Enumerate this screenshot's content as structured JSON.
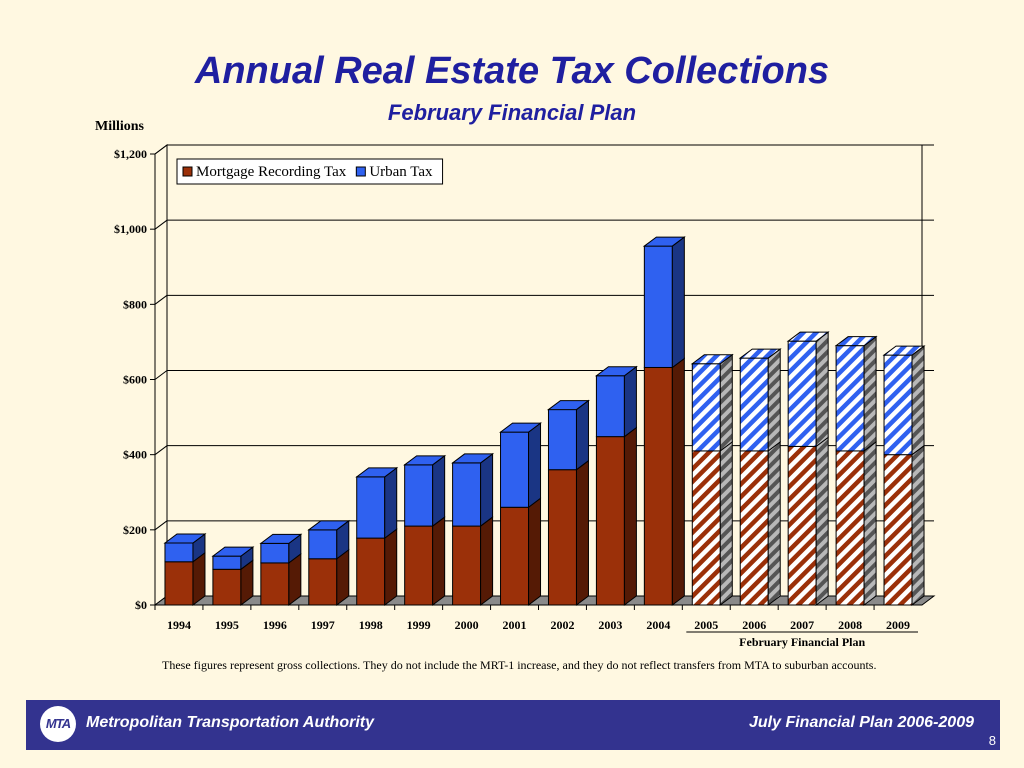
{
  "slide": {
    "title": "Annual Real Estate Tax Collections",
    "subtitle": "February Financial Plan",
    "units_label": "Millions",
    "footnote": "These figures represent gross collections.  They do not include the MRT-1 increase, and they do not reflect transfers from MTA to suburban accounts.",
    "footer_left": "Metropolitan Transportation Authority",
    "footer_right": "July Financial Plan 2006-2009",
    "logo_text": "MTA",
    "page_number": "8"
  },
  "chart_data": {
    "type": "bar",
    "stacked": true,
    "three_d": true,
    "categories": [
      "1994",
      "1995",
      "1996",
      "1997",
      "1998",
      "1999",
      "2000",
      "2001",
      "2002",
      "2003",
      "2004",
      "2005",
      "2006",
      "2007",
      "2008",
      "2009"
    ],
    "series": [
      {
        "name": "Mortgage Recording Tax",
        "color": "#9b3009",
        "values": [
          115,
          95,
          112,
          123,
          178,
          210,
          210,
          260,
          360,
          448,
          632,
          410,
          410,
          422,
          410,
          400
        ]
      },
      {
        "name": "Urban Tax",
        "color": "#2f61f0",
        "values": [
          50,
          35,
          52,
          77,
          163,
          163,
          168,
          200,
          160,
          162,
          323,
          232,
          247,
          280,
          280,
          265
        ]
      }
    ],
    "projected_categories": [
      "2005",
      "2006",
      "2007",
      "2008",
      "2009"
    ],
    "projected_label": "February Financial Plan",
    "ylim": [
      0,
      1200
    ],
    "y_ticks": [
      0,
      200,
      400,
      600,
      800,
      1000,
      1200
    ],
    "y_tick_labels": [
      "$0",
      "$200",
      "$400",
      "$600",
      "$800",
      "$1,000",
      "$1,200"
    ],
    "grid": true,
    "legend_position": "top-left"
  }
}
